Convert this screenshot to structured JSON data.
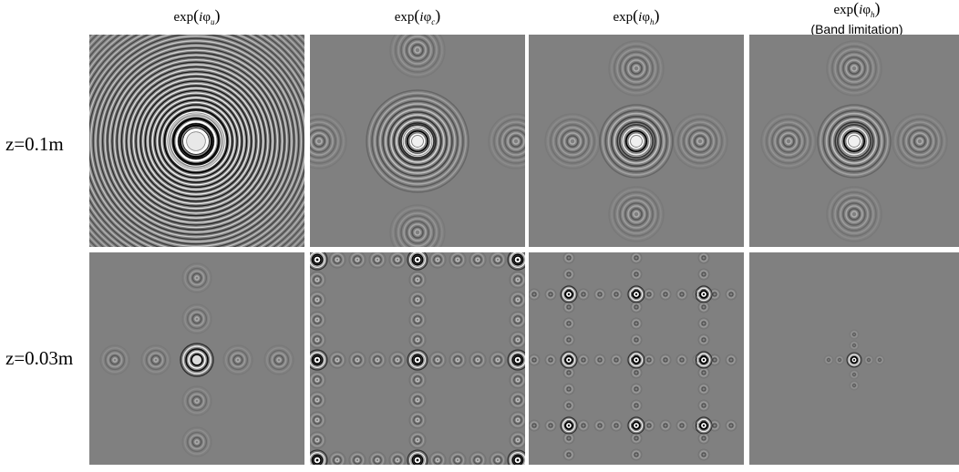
{
  "column_headers": [
    {
      "main": "exp(iφu)",
      "sub": ""
    },
    {
      "main": "exp(iφc)",
      "sub": ""
    },
    {
      "main": "exp(iφh)",
      "sub": ""
    },
    {
      "main": "exp(iφh)",
      "sub": "(Band limitation)"
    }
  ],
  "row_labels": [
    "z=0.1m",
    "z=0.03m"
  ],
  "panels": [
    {
      "name": "panel-z01-phi-u",
      "pattern": "single-large-fresnel"
    },
    {
      "name": "panel-z01-phi-c",
      "pattern": "center-with-faint-replicas"
    },
    {
      "name": "panel-z01-phi-h",
      "pattern": "center-with-faint-replicas"
    },
    {
      "name": "panel-z01-phi-h-band",
      "pattern": "center-with-faint-replicas"
    },
    {
      "name": "panel-z003-phi-u",
      "pattern": "center-with-axis-replicas"
    },
    {
      "name": "panel-z003-phi-c",
      "pattern": "3x3-grid-replicas-at-edges"
    },
    {
      "name": "panel-z003-phi-h",
      "pattern": "3x3-grid-replicas"
    },
    {
      "name": "panel-z003-phi-h-band",
      "pattern": "single-small-center"
    }
  ],
  "colors": {
    "background": "#808080",
    "dark": "#000000",
    "light": "#ffffff",
    "separator": "#ffffff"
  }
}
